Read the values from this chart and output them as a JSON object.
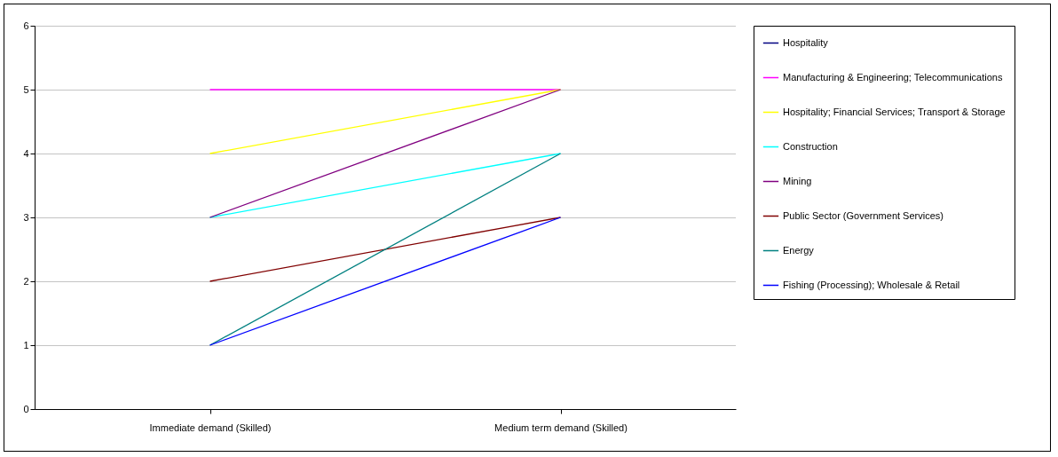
{
  "chart_data": {
    "type": "line",
    "categories": [
      "Immediate demand (Skilled)",
      "Medium term demand (Skilled)"
    ],
    "series": [
      {
        "name": "Hospitality",
        "color": "#000080",
        "values": [
          null,
          null
        ]
      },
      {
        "name": "Manufacturing & Engineering; Telecommunications",
        "color": "#ff00ff",
        "values": [
          5,
          5
        ]
      },
      {
        "name": "Hospitality; Financial Services; Transport & Storage",
        "color": "#ffff00",
        "values": [
          4,
          5
        ]
      },
      {
        "name": "Construction",
        "color": "#00ffff",
        "values": [
          3,
          4
        ]
      },
      {
        "name": "Mining",
        "color": "#800080",
        "values": [
          3,
          5
        ]
      },
      {
        "name": "Public Sector (Government Services)",
        "color": "#800000",
        "values": [
          2,
          3
        ]
      },
      {
        "name": "Energy",
        "color": "#008080",
        "values": [
          1,
          4
        ]
      },
      {
        "name": "Fishing (Processing); Wholesale & Retail",
        "color": "#0000ff",
        "values": [
          1,
          3
        ]
      }
    ],
    "ylim": [
      0,
      6
    ],
    "yticks": [
      0,
      1,
      2,
      3,
      4,
      5,
      6
    ],
    "grid": "y",
    "legend": "right",
    "marker": "none",
    "line_style": "solid"
  }
}
